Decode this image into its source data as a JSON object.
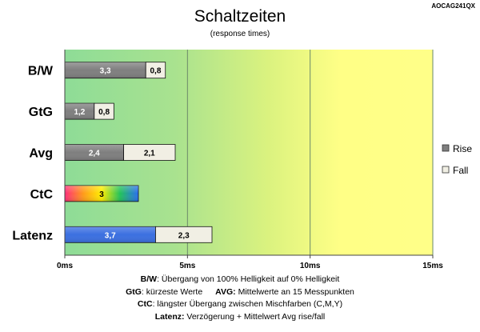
{
  "model_code": "AOCAG241QX",
  "chart_data": {
    "type": "bar",
    "orientation": "horizontal",
    "stacked": true,
    "title": "Schaltzeiten",
    "subtitle": "(response times)",
    "categories": [
      "B/W",
      "GtG",
      "Avg",
      "CtC",
      "Latenz"
    ],
    "series": [
      {
        "name": "Rise",
        "values": [
          3.3,
          1.2,
          2.4,
          3,
          3.7
        ],
        "labels": [
          "3,3",
          "1,2",
          "2,4",
          "3",
          "3,7"
        ]
      },
      {
        "name": "Fall",
        "values": [
          0.8,
          0.8,
          2.1,
          null,
          2.3
        ],
        "labels": [
          "0,8",
          "0,8",
          "2,1",
          "",
          "2,3"
        ]
      }
    ],
    "xlim": [
      0,
      15
    ],
    "xticks": [
      0,
      5,
      10,
      15
    ],
    "xtick_labels": [
      "0ms",
      "5ms",
      "10ms",
      "15ms"
    ],
    "legend_position": "right",
    "colors": {
      "rise": "#7f7f7f",
      "fall": "#f1efe4",
      "latenz_rise": "#3b6fe0",
      "plot_green": "#8fdc96",
      "plot_yellow": "#ffff86"
    }
  },
  "notes": {
    "bw_key": "B/W",
    "bw_text": ":  Übergang von 100% Helligkeit auf 0% Helligkeit",
    "gtg_key": "GtG",
    "gtg_text": ": kürzeste  Werte",
    "avg_key": "AVG:",
    "avg_text": " Mittelwerte  an 15 Messpunkten",
    "ctc_key": "CtC",
    "ctc_text": ": längster Übergang  zwischen Mischfarben  (C,M,Y)",
    "latenz_key": "Latenz:",
    "latenz_text": " Verzögerung  + Mittelwert Avg rise/fall"
  }
}
